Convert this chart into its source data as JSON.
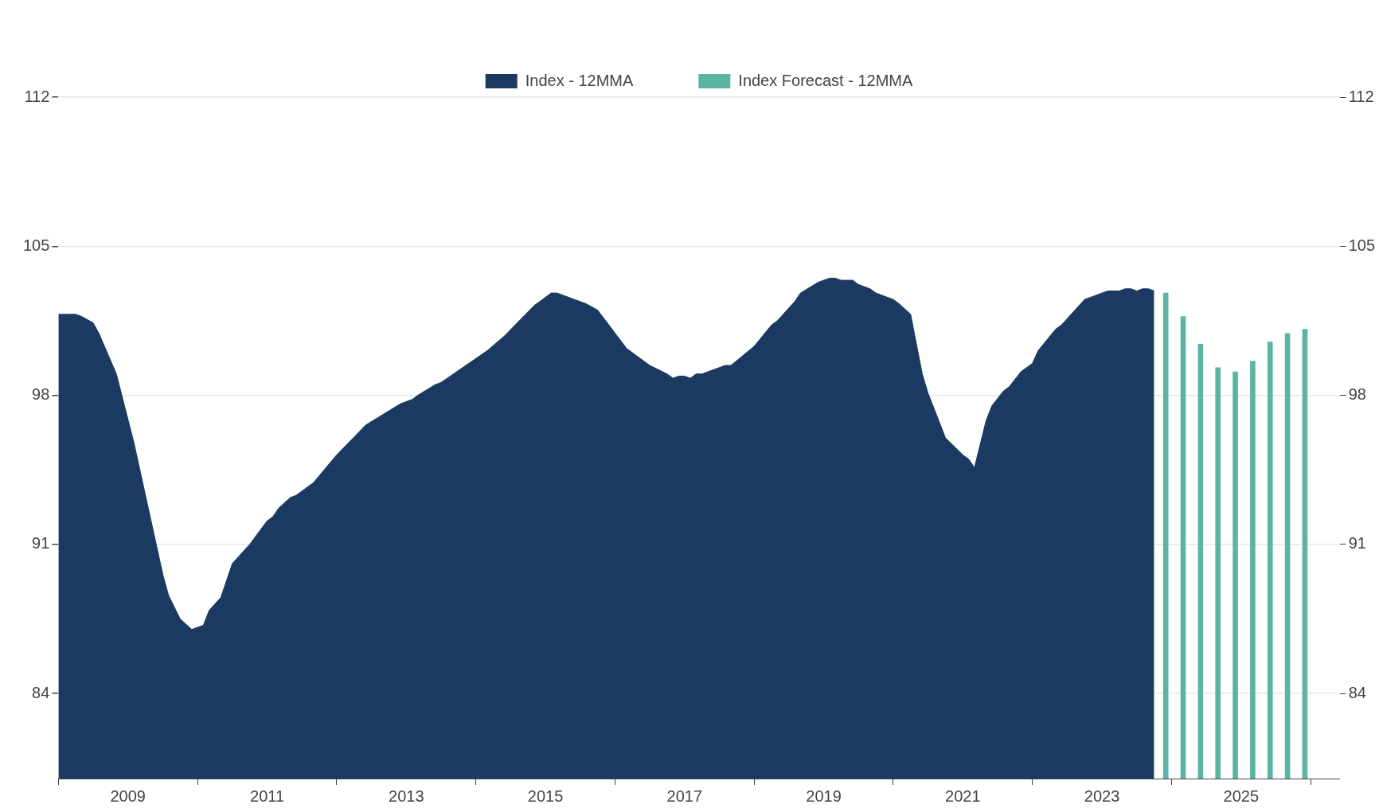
{
  "chart_data": {
    "type": "area",
    "legend": "top",
    "grid": "y",
    "xlim": [
      "2008-01",
      "2026-06"
    ],
    "xticks": [
      "2009",
      "2011",
      "2013",
      "2015",
      "2017",
      "2019",
      "2021",
      "2023",
      "2025"
    ],
    "ylim": [
      80,
      112
    ],
    "yticks": [
      84,
      91,
      98,
      105,
      112
    ],
    "y2lim": [
      80,
      112
    ],
    "y2ticks": [
      84,
      91,
      98,
      105,
      112
    ],
    "series": [
      {
        "name": "Index - 12MMA",
        "color": "#1b3a61",
        "x": [
          "2008-01",
          "2008-04",
          "2008-05",
          "2008-07",
          "2008-08",
          "2008-11",
          "2009-02",
          "2009-07",
          "2009-08",
          "2009-10",
          "2009-12",
          "2010-01",
          "2010-02",
          "2010-03",
          "2010-05",
          "2010-07",
          "2010-10",
          "2011-01",
          "2011-02",
          "2011-03",
          "2011-05",
          "2011-06",
          "2011-09",
          "2012-01",
          "2012-06",
          "2012-12",
          "2013-02",
          "2013-03",
          "2013-06",
          "2013-07",
          "2014-03",
          "2014-06",
          "2014-11",
          "2015-02",
          "2015-03",
          "2015-06",
          "2015-08",
          "2015-10",
          "2016-03",
          "2016-04",
          "2016-06",
          "2016-07",
          "2016-10",
          "2016-11",
          "2016-12",
          "2017-01",
          "2017-02",
          "2017-03",
          "2017-04",
          "2017-05",
          "2017-08",
          "2017-09",
          "2018-01",
          "2018-04",
          "2018-05",
          "2018-08",
          "2018-09",
          "2018-12",
          "2019-02",
          "2019-03",
          "2019-04",
          "2019-06",
          "2019-07",
          "2019-09",
          "2019-10",
          "2019-12",
          "2020-01",
          "2020-02",
          "2020-04",
          "2020-06",
          "2020-07",
          "2020-10",
          "2021-01",
          "2021-02",
          "2021-03",
          "2021-05",
          "2021-06",
          "2021-08",
          "2021-09",
          "2021-11",
          "2022-01",
          "2022-02",
          "2022-05",
          "2022-06",
          "2022-10",
          "2023-02",
          "2023-04",
          "2023-05",
          "2023-06",
          "2023-07",
          "2023-08",
          "2023-09",
          "2023-10"
        ],
        "values": [
          101.8,
          101.8,
          101.7,
          101.4,
          100.9,
          99.0,
          95.8,
          89.6,
          88.6,
          87.5,
          87.0,
          87.1,
          87.2,
          87.9,
          88.5,
          90.1,
          91.0,
          92.1,
          92.3,
          92.7,
          93.2,
          93.3,
          93.9,
          95.2,
          96.6,
          97.6,
          97.8,
          98.0,
          98.5,
          98.6,
          100.1,
          100.8,
          102.2,
          102.8,
          102.8,
          102.5,
          102.3,
          102.0,
          100.2,
          100.0,
          99.6,
          99.4,
          99.0,
          98.8,
          98.9,
          98.9,
          98.8,
          99.0,
          99.0,
          99.1,
          99.4,
          99.4,
          100.3,
          101.3,
          101.5,
          102.4,
          102.8,
          103.3,
          103.5,
          103.5,
          103.4,
          103.4,
          103.2,
          103.0,
          102.8,
          102.6,
          102.5,
          102.3,
          101.8,
          99.0,
          98.1,
          96.0,
          95.2,
          95.0,
          94.6,
          96.8,
          97.5,
          98.2,
          98.4,
          99.1,
          99.5,
          100.1,
          101.1,
          101.3,
          102.5,
          102.9,
          102.9,
          103.0,
          103.0,
          102.9,
          103.0,
          103.0,
          102.9
        ]
      },
      {
        "name": "Index Forecast - 12MMA",
        "type": "bar",
        "color": "#5bb5a2",
        "x": [
          "2023-12",
          "2024-03",
          "2024-06",
          "2024-09",
          "2024-12",
          "2025-03",
          "2025-06",
          "2025-09",
          "2025-12"
        ],
        "values": [
          102.8,
          101.7,
          100.4,
          99.3,
          99.1,
          99.6,
          100.5,
          100.9,
          101.1
        ]
      }
    ]
  }
}
